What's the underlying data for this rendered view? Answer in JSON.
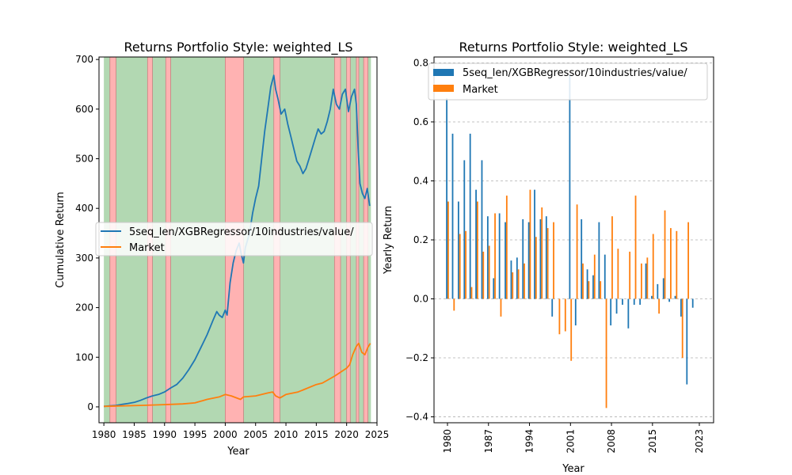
{
  "chart_data": [
    {
      "type": "line",
      "title": "Returns Portfolio Style: weighted_LS",
      "xlabel": "Year",
      "ylabel": "Cumulative Return",
      "xlim": [
        1979.2,
        2025.0
      ],
      "ylim": [
        -32,
        705
      ],
      "xticks": [
        1980,
        1985,
        1990,
        1995,
        2000,
        2005,
        2010,
        2015,
        2020,
        2025
      ],
      "xtick_labels": [
        "1980",
        "1985",
        "1990",
        "1995",
        "2000",
        "2005",
        "2010",
        "2015",
        "2020",
        "2025"
      ],
      "yticks": [
        0,
        100,
        200,
        300,
        400,
        500,
        600,
        700
      ],
      "ytick_labels": [
        "0",
        "100",
        "200",
        "300",
        "400",
        "500",
        "600",
        "700"
      ],
      "legend_position": "center-left",
      "regime_colors": {
        "expansion": "#b2d8b2",
        "recession": "#ffb2b2"
      },
      "background_span": [
        1980.0,
        2024.0
      ],
      "recession_spans": [
        [
          1981.0,
          1982.0
        ],
        [
          1987.2,
          1988.0
        ],
        [
          1990.2,
          1991.0
        ],
        [
          2000.0,
          2003.0
        ],
        [
          2008.0,
          2009.0
        ],
        [
          2018.0,
          2019.0
        ],
        [
          2020.0,
          2020.6
        ],
        [
          2021.6,
          2022.0
        ],
        [
          2022.8,
          2023.5
        ]
      ],
      "series": [
        {
          "name": "5seq_len/XGBRegressor/10industries/value/",
          "color": "#1f77b4",
          "points": [
            [
              1980.0,
              1
            ],
            [
              1981.0,
              2
            ],
            [
              1982.0,
              3
            ],
            [
              1983.0,
              5
            ],
            [
              1984.0,
              7
            ],
            [
              1985.0,
              9
            ],
            [
              1986.0,
              13
            ],
            [
              1987.0,
              18
            ],
            [
              1988.0,
              22
            ],
            [
              1989.0,
              25
            ],
            [
              1990.0,
              30
            ],
            [
              1991.0,
              38
            ],
            [
              1992.0,
              45
            ],
            [
              1993.0,
              58
            ],
            [
              1994.0,
              75
            ],
            [
              1995.0,
              95
            ],
            [
              1996.0,
              120
            ],
            [
              1997.0,
              145
            ],
            [
              1998.0,
              175
            ],
            [
              1998.6,
              192
            ],
            [
              1999.0,
              185
            ],
            [
              1999.5,
              180
            ],
            [
              2000.0,
              195
            ],
            [
              2000.3,
              185
            ],
            [
              2000.8,
              250
            ],
            [
              2001.3,
              290
            ],
            [
              2001.8,
              315
            ],
            [
              2002.3,
              330
            ],
            [
              2002.6,
              310
            ],
            [
              2003.0,
              290
            ],
            [
              2003.3,
              320
            ],
            [
              2004.0,
              350
            ],
            [
              2004.5,
              390
            ],
            [
              2005.0,
              420
            ],
            [
              2005.5,
              445
            ],
            [
              2006.0,
              500
            ],
            [
              2006.5,
              555
            ],
            [
              2007.0,
              600
            ],
            [
              2007.5,
              645
            ],
            [
              2008.0,
              668
            ],
            [
              2008.3,
              640
            ],
            [
              2008.7,
              620
            ],
            [
              2009.2,
              590
            ],
            [
              2009.8,
              600
            ],
            [
              2010.3,
              570
            ],
            [
              2010.8,
              545
            ],
            [
              2011.3,
              520
            ],
            [
              2011.8,
              495
            ],
            [
              2012.3,
              485
            ],
            [
              2012.8,
              470
            ],
            [
              2013.3,
              480
            ],
            [
              2013.8,
              500
            ],
            [
              2014.3,
              520
            ],
            [
              2014.8,
              540
            ],
            [
              2015.3,
              560
            ],
            [
              2015.8,
              550
            ],
            [
              2016.3,
              555
            ],
            [
              2016.8,
              575
            ],
            [
              2017.3,
              600
            ],
            [
              2017.8,
              640
            ],
            [
              2018.3,
              610
            ],
            [
              2018.8,
              600
            ],
            [
              2019.3,
              630
            ],
            [
              2019.8,
              640
            ],
            [
              2020.3,
              595
            ],
            [
              2020.8,
              625
            ],
            [
              2021.3,
              640
            ],
            [
              2021.6,
              610
            ],
            [
              2021.9,
              520
            ],
            [
              2022.2,
              450
            ],
            [
              2022.6,
              430
            ],
            [
              2023.0,
              420
            ],
            [
              2023.4,
              440
            ],
            [
              2023.8,
              405
            ]
          ]
        },
        {
          "name": "Market",
          "color": "#ff7f0e",
          "points": [
            [
              1980.0,
              1
            ],
            [
              1983.0,
              2
            ],
            [
              1986.0,
              3
            ],
            [
              1989.0,
              4
            ],
            [
              1991.0,
              5
            ],
            [
              1993.0,
              6
            ],
            [
              1995.0,
              8
            ],
            [
              1997.0,
              15
            ],
            [
              1999.0,
              20
            ],
            [
              2000.0,
              25
            ],
            [
              2001.0,
              22
            ],
            [
              2002.5,
              15
            ],
            [
              2003.0,
              20
            ],
            [
              2005.0,
              22
            ],
            [
              2007.0,
              28
            ],
            [
              2007.8,
              30
            ],
            [
              2008.3,
              22
            ],
            [
              2009.0,
              18
            ],
            [
              2010.0,
              25
            ],
            [
              2012.0,
              30
            ],
            [
              2013.0,
              35
            ],
            [
              2015.0,
              45
            ],
            [
              2016.0,
              48
            ],
            [
              2017.0,
              55
            ],
            [
              2018.0,
              62
            ],
            [
              2019.0,
              70
            ],
            [
              2020.0,
              78
            ],
            [
              2020.5,
              85
            ],
            [
              2021.0,
              105
            ],
            [
              2021.6,
              122
            ],
            [
              2022.0,
              128
            ],
            [
              2022.5,
              110
            ],
            [
              2023.0,
              105
            ],
            [
              2023.5,
              120
            ],
            [
              2023.9,
              128
            ]
          ]
        }
      ]
    },
    {
      "type": "bar",
      "title": "Returns Portfolio Style: weighted_LS",
      "xlabel": "Year",
      "ylabel": "Yearly Return",
      "ylim": [
        -0.42,
        0.82
      ],
      "yticks": [
        -0.4,
        -0.2,
        0.0,
        0.2,
        0.4,
        0.6,
        0.8
      ],
      "ytick_labels": [
        "−0.4",
        "−0.2",
        "0.0",
        "0.2",
        "0.4",
        "0.6",
        "0.8"
      ],
      "grid": "y dashed",
      "legend_position": "top-left",
      "years": [
        1980,
        1981,
        1982,
        1983,
        1984,
        1985,
        1986,
        1987,
        1988,
        1989,
        1990,
        1991,
        1992,
        1993,
        1994,
        1995,
        1996,
        1997,
        1998,
        1999,
        2000,
        2001,
        2002,
        2003,
        2004,
        2005,
        2006,
        2007,
        2008,
        2009,
        2010,
        2011,
        2012,
        2013,
        2014,
        2015,
        2016,
        2017,
        2018,
        2019,
        2020,
        2021,
        2022,
        2023
      ],
      "xtick_years": [
        1980,
        1987,
        1994,
        2001,
        2008,
        2015,
        2023
      ],
      "xtick_labels": [
        "1980",
        "1987",
        "1994",
        "2001",
        "2008",
        "2015",
        "2023"
      ],
      "series": [
        {
          "name": "5seq_len/XGBRegressor/10industries/value/",
          "color": "#1f77b4",
          "values": [
            0.68,
            0.56,
            0.33,
            0.47,
            0.56,
            0.37,
            0.47,
            0.28,
            0.07,
            0.29,
            0.26,
            0.13,
            0.14,
            0.27,
            0.26,
            0.37,
            0.27,
            0.28,
            -0.06,
            0.0,
            0.0,
            0.76,
            -0.09,
            0.27,
            0.1,
            0.08,
            0.26,
            0.15,
            -0.09,
            -0.05,
            -0.02,
            -0.1,
            -0.02,
            -0.02,
            0.12,
            0.01,
            0.05,
            0.07,
            -0.01,
            0.01,
            -0.06,
            -0.29,
            -0.03,
            0.0
          ]
        },
        {
          "name": "Market",
          "color": "#ff7f0e",
          "values": [
            0.33,
            -0.04,
            0.22,
            0.23,
            0.04,
            0.33,
            0.16,
            0.18,
            0.29,
            -0.06,
            0.35,
            0.09,
            0.1,
            0.12,
            0.37,
            0.21,
            0.31,
            0.24,
            0.26,
            -0.12,
            -0.11,
            -0.21,
            0.32,
            0.12,
            0.06,
            0.15,
            0.06,
            -0.37,
            0.28,
            0.17,
            0.0,
            0.16,
            0.35,
            0.12,
            0.14,
            0.22,
            -0.05,
            0.3,
            0.24,
            0.23,
            -0.2,
            0.26,
            0.0,
            0.0
          ]
        }
      ]
    }
  ]
}
